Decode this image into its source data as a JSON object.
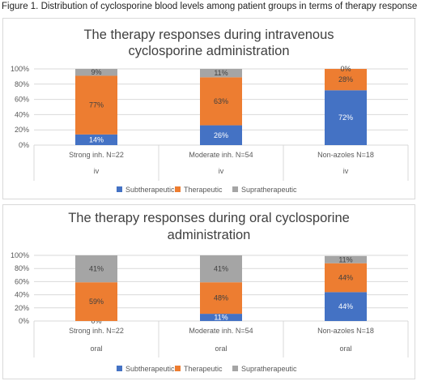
{
  "figure_caption": "Figure 1. Distribution of cyclosporine blood levels among patient groups in terms of therapy response",
  "chart_data": [
    {
      "type": "bar",
      "stacked": true,
      "title_lines": [
        "The therapy responses during intravenous",
        "cyclosporine administration"
      ],
      "categories": [
        "Strong inh. N=22",
        "Moderate inh. N=54",
        "Non-azoles N=18"
      ],
      "category_group": [
        "iv",
        "iv",
        "iv"
      ],
      "ylim": [
        0,
        100
      ],
      "yticks": [
        "0%",
        "20%",
        "40%",
        "60%",
        "80%",
        "100%"
      ],
      "series": [
        {
          "name": "Subtherapeutic",
          "color": "#4472c4",
          "values": [
            14,
            26,
            72
          ],
          "labels": [
            "14%",
            "26%",
            "72%"
          ]
        },
        {
          "name": "Therapeutic",
          "color": "#ed7d31",
          "values": [
            77,
            63,
            28
          ],
          "labels": [
            "77%",
            "63%",
            "28%"
          ]
        },
        {
          "name": "Supratherapeutic",
          "color": "#a5a5a5",
          "values": [
            9,
            11,
            0
          ],
          "labels": [
            "9%",
            "11%",
            "0%"
          ]
        }
      ],
      "legend_position": "bottom",
      "grid": true
    },
    {
      "type": "bar",
      "stacked": true,
      "title_lines": [
        "The therapy responses during oral cyclosporine",
        "administration"
      ],
      "categories": [
        "Strong inh. N=22",
        "Moderate inh. N=54",
        "Non-azoles N=18"
      ],
      "category_group": [
        "oral",
        "oral",
        "oral"
      ],
      "ylim": [
        0,
        100
      ],
      "yticks": [
        "0%",
        "20%",
        "40%",
        "60%",
        "80%",
        "100%"
      ],
      "series": [
        {
          "name": "Subtherapeutic",
          "color": "#4472c4",
          "values": [
            0,
            11,
            44
          ],
          "labels": [
            "0%",
            "11%",
            "44%"
          ]
        },
        {
          "name": "Therapeutic",
          "color": "#ed7d31",
          "values": [
            59,
            48,
            44
          ],
          "labels": [
            "59%",
            "48%",
            "44%"
          ]
        },
        {
          "name": "Supratherapeutic",
          "color": "#a5a5a5",
          "values": [
            41,
            41,
            11
          ],
          "labels": [
            "41%",
            "41%",
            "11%"
          ]
        }
      ],
      "legend_position": "bottom",
      "grid": true
    }
  ]
}
